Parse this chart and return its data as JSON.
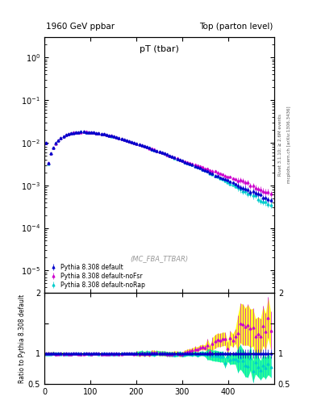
{
  "title_left": "1960 GeV ppbar",
  "title_right": "Top (parton level)",
  "plot_title": "pT (tbar)",
  "ylabel_ratio": "Ratio to Pythia 8.308 default",
  "right_label_top": "Rivet 3.1.10; ≥ 2.6M events",
  "right_label_bot": "mcplots.cern.ch [arXiv:1306.3436]",
  "watermark": "(MC_FBA_TTBAR)",
  "legend_entries": [
    "Pythia 8.308 default",
    "Pythia 8.308 default-noFsr",
    "Pythia 8.308 default-noRap"
  ],
  "colors": [
    "#0000cc",
    "#cc00cc",
    "#00cccc"
  ],
  "ylim_main": [
    3e-06,
    3.0
  ],
  "ylim_ratio": [
    0.5,
    2.0
  ],
  "xlim": [
    0,
    500
  ],
  "xticks": [
    0,
    100,
    200,
    300,
    400
  ],
  "ratio_yticks": [
    0.5,
    1.0,
    1.5,
    2.0
  ],
  "band_color_noFsr": "#ffff00",
  "band_color_noRap": "#00ff88",
  "background": "#ffffff"
}
